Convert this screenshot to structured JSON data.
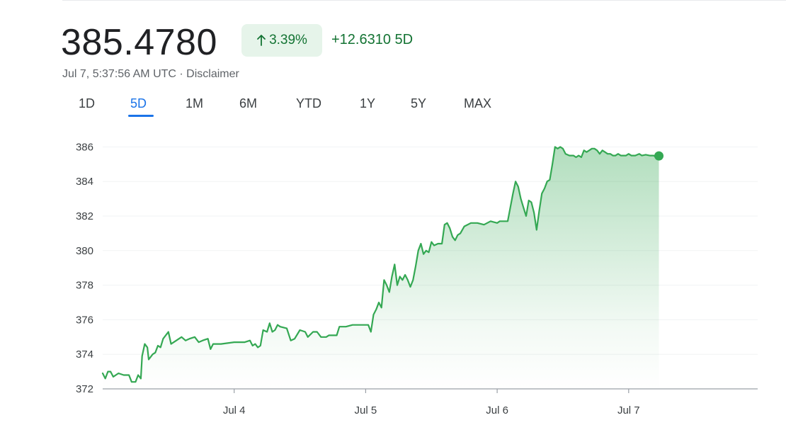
{
  "quote": {
    "price": "385.4780",
    "change_pct": "3.39%",
    "change_abs": "+12.6310",
    "change_period": "5D",
    "timestamp": "Jul 7, 5:37:56 AM UTC · Disclaimer"
  },
  "icons": {
    "change_arrow": "arrow-up-icon"
  },
  "tabs": [
    "1D",
    "5D",
    "1M",
    "6M",
    "YTD",
    "1Y",
    "5Y",
    "MAX"
  ],
  "active_tab": "5D",
  "colors": {
    "positive": "#137333",
    "positive_bg": "#e6f4ea",
    "line": "#34a853",
    "active_tab": "#1a73e8"
  },
  "chart_data": {
    "type": "area",
    "title": "",
    "xlabel": "",
    "ylabel": "",
    "x_ticks": [
      {
        "label": "Jul 4",
        "x": 1.0
      },
      {
        "label": "Jul 5",
        "x": 2.0
      },
      {
        "label": "Jul 6",
        "x": 3.0
      },
      {
        "label": "Jul 7",
        "x": 4.0
      }
    ],
    "x_range": [
      0,
      5.0
    ],
    "y_ticks": [
      372,
      374,
      376,
      378,
      380,
      382,
      384,
      386
    ],
    "ylim": [
      372,
      386.3
    ],
    "grid": "horizontal",
    "series": [
      {
        "points": [
          [
            0.0,
            372.9
          ],
          [
            0.02,
            372.6
          ],
          [
            0.04,
            373.0
          ],
          [
            0.06,
            373.0
          ],
          [
            0.08,
            372.7
          ],
          [
            0.12,
            372.9
          ],
          [
            0.16,
            372.8
          ],
          [
            0.2,
            372.8
          ],
          [
            0.22,
            372.4
          ],
          [
            0.25,
            372.4
          ],
          [
            0.27,
            372.8
          ],
          [
            0.29,
            372.6
          ],
          [
            0.3,
            373.9
          ],
          [
            0.32,
            374.6
          ],
          [
            0.34,
            374.4
          ],
          [
            0.35,
            373.7
          ],
          [
            0.38,
            374.0
          ],
          [
            0.4,
            374.1
          ],
          [
            0.42,
            374.5
          ],
          [
            0.44,
            374.4
          ],
          [
            0.46,
            374.9
          ],
          [
            0.5,
            375.3
          ],
          [
            0.52,
            374.6
          ],
          [
            0.56,
            374.8
          ],
          [
            0.6,
            375.0
          ],
          [
            0.63,
            374.8
          ],
          [
            0.66,
            374.9
          ],
          [
            0.7,
            375.0
          ],
          [
            0.73,
            374.7
          ],
          [
            0.76,
            374.8
          ],
          [
            0.8,
            374.9
          ],
          [
            0.82,
            374.3
          ],
          [
            0.84,
            374.6
          ],
          [
            0.9,
            374.6
          ],
          [
            1.0,
            374.7
          ],
          [
            1.08,
            374.7
          ],
          [
            1.12,
            374.8
          ],
          [
            1.14,
            374.5
          ],
          [
            1.16,
            374.6
          ],
          [
            1.18,
            374.4
          ],
          [
            1.2,
            374.5
          ],
          [
            1.22,
            375.4
          ],
          [
            1.25,
            375.3
          ],
          [
            1.27,
            375.8
          ],
          [
            1.29,
            375.3
          ],
          [
            1.31,
            375.4
          ],
          [
            1.33,
            375.7
          ],
          [
            1.35,
            375.6
          ],
          [
            1.4,
            375.5
          ],
          [
            1.43,
            374.8
          ],
          [
            1.46,
            374.9
          ],
          [
            1.5,
            375.4
          ],
          [
            1.54,
            375.3
          ],
          [
            1.56,
            375.0
          ],
          [
            1.6,
            375.3
          ],
          [
            1.63,
            375.3
          ],
          [
            1.66,
            375.0
          ],
          [
            1.7,
            375.0
          ],
          [
            1.72,
            375.1
          ],
          [
            1.78,
            375.1
          ],
          [
            1.8,
            375.6
          ],
          [
            1.85,
            375.6
          ],
          [
            1.9,
            375.7
          ],
          [
            1.95,
            375.7
          ],
          [
            2.0,
            375.7
          ],
          [
            2.02,
            375.7
          ],
          [
            2.04,
            375.3
          ],
          [
            2.06,
            376.3
          ],
          [
            2.08,
            376.6
          ],
          [
            2.1,
            377.0
          ],
          [
            2.12,
            376.7
          ],
          [
            2.14,
            378.3
          ],
          [
            2.16,
            378.0
          ],
          [
            2.18,
            377.6
          ],
          [
            2.2,
            378.5
          ],
          [
            2.22,
            379.2
          ],
          [
            2.24,
            378.0
          ],
          [
            2.26,
            378.5
          ],
          [
            2.28,
            378.3
          ],
          [
            2.3,
            378.6
          ],
          [
            2.32,
            378.3
          ],
          [
            2.34,
            377.9
          ],
          [
            2.36,
            378.3
          ],
          [
            2.38,
            379.1
          ],
          [
            2.4,
            380.0
          ],
          [
            2.42,
            380.4
          ],
          [
            2.44,
            379.8
          ],
          [
            2.46,
            380.0
          ],
          [
            2.48,
            379.9
          ],
          [
            2.5,
            380.5
          ],
          [
            2.52,
            380.3
          ],
          [
            2.55,
            380.4
          ],
          [
            2.58,
            380.4
          ],
          [
            2.6,
            381.5
          ],
          [
            2.62,
            381.6
          ],
          [
            2.64,
            381.3
          ],
          [
            2.66,
            380.8
          ],
          [
            2.68,
            380.6
          ],
          [
            2.7,
            380.9
          ],
          [
            2.72,
            381.0
          ],
          [
            2.75,
            381.4
          ],
          [
            2.8,
            381.6
          ],
          [
            2.85,
            381.6
          ],
          [
            2.9,
            381.5
          ],
          [
            2.95,
            381.7
          ],
          [
            3.0,
            381.6
          ],
          [
            3.02,
            381.7
          ],
          [
            3.08,
            381.7
          ],
          [
            3.1,
            382.5
          ],
          [
            3.12,
            383.3
          ],
          [
            3.14,
            384.0
          ],
          [
            3.16,
            383.7
          ],
          [
            3.18,
            383.0
          ],
          [
            3.2,
            382.5
          ],
          [
            3.22,
            382.0
          ],
          [
            3.24,
            382.9
          ],
          [
            3.26,
            382.8
          ],
          [
            3.28,
            382.2
          ],
          [
            3.3,
            381.2
          ],
          [
            3.32,
            382.3
          ],
          [
            3.34,
            383.3
          ],
          [
            3.36,
            383.6
          ],
          [
            3.38,
            384.0
          ],
          [
            3.4,
            384.1
          ],
          [
            3.42,
            385.0
          ],
          [
            3.44,
            386.0
          ],
          [
            3.46,
            385.9
          ],
          [
            3.48,
            386.0
          ],
          [
            3.5,
            385.9
          ],
          [
            3.52,
            385.6
          ],
          [
            3.55,
            385.5
          ],
          [
            3.58,
            385.5
          ],
          [
            3.6,
            385.4
          ],
          [
            3.62,
            385.5
          ],
          [
            3.64,
            385.4
          ],
          [
            3.66,
            385.8
          ],
          [
            3.68,
            385.7
          ],
          [
            3.7,
            385.8
          ],
          [
            3.72,
            385.9
          ],
          [
            3.74,
            385.9
          ],
          [
            3.76,
            385.8
          ],
          [
            3.78,
            385.6
          ],
          [
            3.8,
            385.8
          ],
          [
            3.82,
            385.7
          ],
          [
            3.84,
            385.6
          ],
          [
            3.86,
            385.6
          ],
          [
            3.88,
            385.5
          ],
          [
            3.9,
            385.5
          ],
          [
            3.92,
            385.6
          ],
          [
            3.94,
            385.5
          ],
          [
            3.96,
            385.5
          ],
          [
            3.98,
            385.5
          ],
          [
            4.0,
            385.6
          ],
          [
            4.02,
            385.5
          ],
          [
            4.05,
            385.5
          ],
          [
            4.08,
            385.6
          ],
          [
            4.1,
            385.5
          ],
          [
            4.13,
            385.55
          ],
          [
            4.16,
            385.5
          ],
          [
            4.19,
            385.5
          ],
          [
            4.21,
            385.4
          ],
          [
            4.23,
            385.48
          ]
        ]
      }
    ],
    "last_value": 385.478
  }
}
